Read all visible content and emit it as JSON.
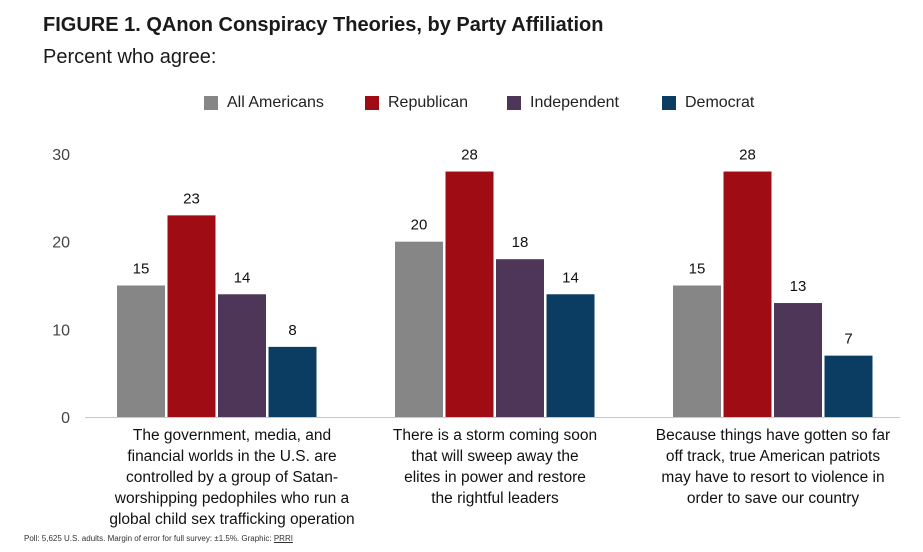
{
  "header": {
    "title": "FIGURE 1. QAnon Conspiracy Theories, by Party Affiliation",
    "subtitle": "Percent who agree:"
  },
  "footer": {
    "note": "Poll: 5,625 U.S. adults. Margin of error for full survey: ±1.5%. Graphic: ",
    "source_link": "PRRI"
  },
  "chart_data": {
    "type": "bar",
    "categories": [
      "The government, media, and financial worlds in the U.S. are controlled by a group of Satan-worshipping pedophiles who run a global child sex trafficking operation",
      "There is a storm coming soon that will sweep away the elites in power and restore the rightful leaders",
      "Because things have gotten so far off track, true American patriots may have to resort to violence in order to save our country"
    ],
    "category_lines": [
      [
        "The government, media, and",
        "financial worlds in the U.S. are",
        "controlled by a group of Satan-",
        "worshipping pedophiles who run a",
        "global child sex trafficking operation"
      ],
      [
        "There is a storm coming soon",
        "that will sweep away the",
        "elites in power and restore",
        "the rightful leaders"
      ],
      [
        "Because things have gotten so far",
        "off track, true American patriots",
        "may have to resort to violence in",
        "order to save our country"
      ]
    ],
    "series": [
      {
        "name": "All Americans",
        "color": "#868686",
        "values": [
          15,
          20,
          15
        ]
      },
      {
        "name": "Republican",
        "color": "#a00c14",
        "values": [
          23,
          28,
          28
        ]
      },
      {
        "name": "Independent",
        "color": "#4d3657",
        "values": [
          14,
          18,
          13
        ]
      },
      {
        "name": "Democrat",
        "color": "#0b3d63",
        "values": [
          8,
          14,
          7
        ]
      }
    ],
    "y_ticks": [
      "0",
      "10",
      "20",
      "30"
    ],
    "ylim": [
      0,
      30
    ],
    "grid": false,
    "legend_position": "top",
    "data_labels": true
  }
}
